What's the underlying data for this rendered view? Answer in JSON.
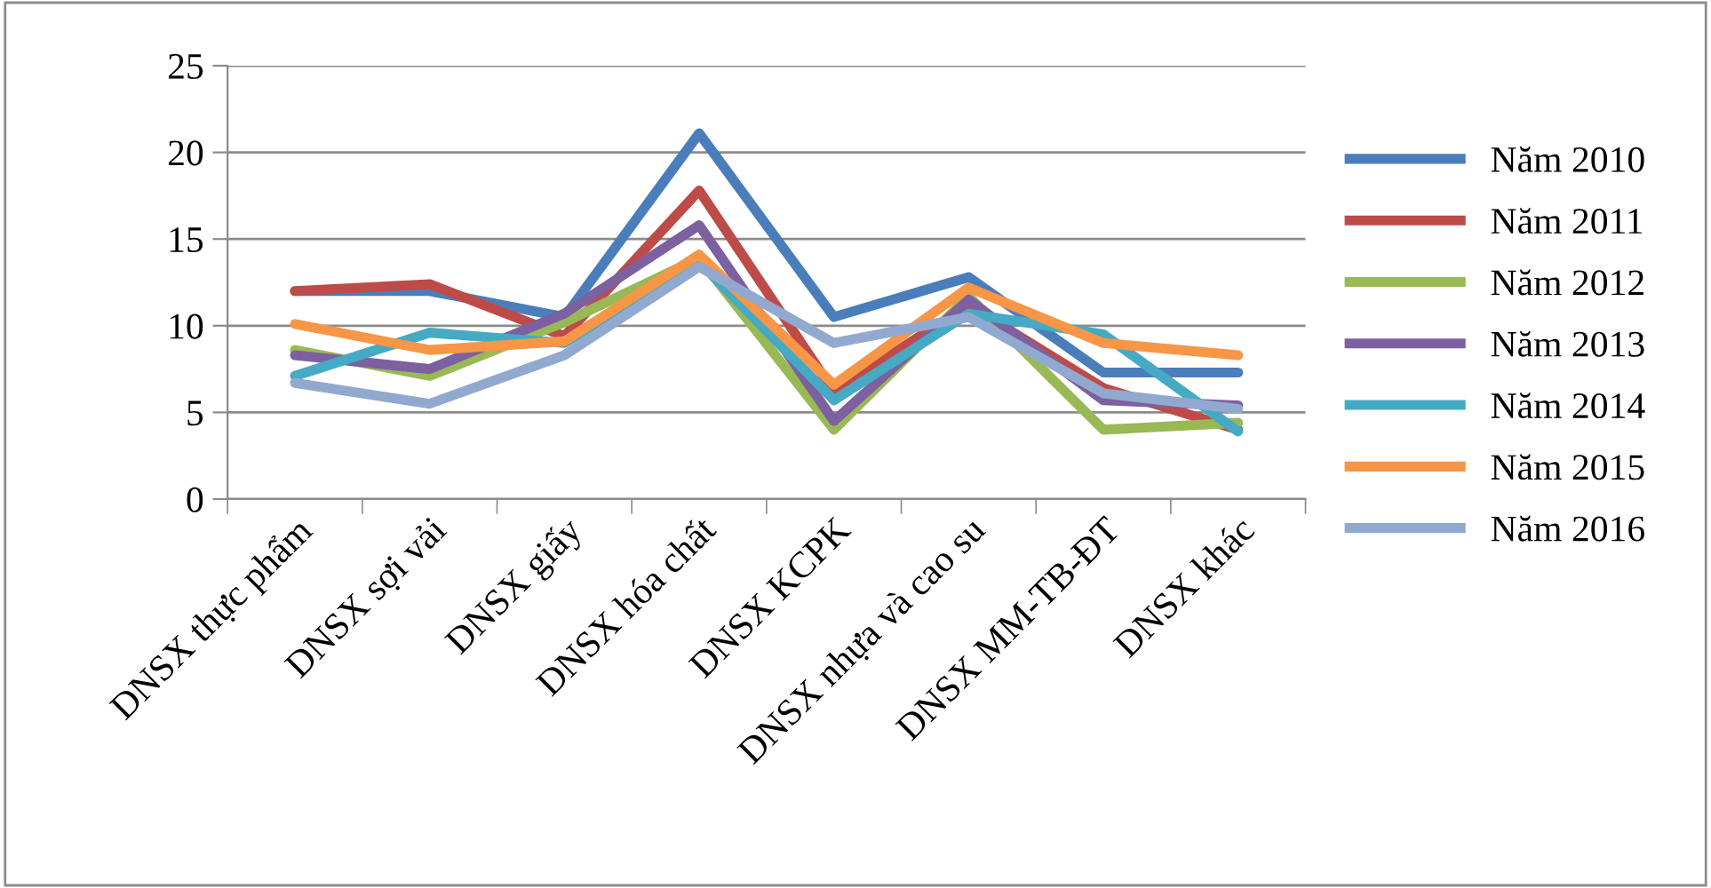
{
  "chart_data": {
    "type": "line",
    "categories": [
      "DNSX thực phẩm",
      "DNSX sợi vải",
      "DNSX giấy",
      "DNSX hóa chất",
      "DNSX KCPK",
      "DNSX nhựa và cao su",
      "DNSX MM-TB-ĐT",
      "DNSX khác"
    ],
    "series": [
      {
        "name": "Năm 2010",
        "color": "#4a7ebb",
        "values": [
          12.0,
          12.0,
          10.5,
          21.1,
          10.5,
          12.8,
          7.3,
          7.3
        ]
      },
      {
        "name": "Năm 2011",
        "color": "#be4b48",
        "values": [
          12.0,
          12.4,
          9.4,
          17.8,
          6.2,
          11.2,
          6.4,
          4.0
        ]
      },
      {
        "name": "Năm 2012",
        "color": "#98b954",
        "values": [
          8.6,
          7.1,
          10.2,
          13.9,
          4.0,
          11.7,
          4.0,
          4.4
        ]
      },
      {
        "name": "Năm 2013",
        "color": "#7d60a0",
        "values": [
          8.3,
          7.5,
          10.7,
          15.8,
          4.5,
          11.5,
          5.7,
          5.4
        ]
      },
      {
        "name": "Năm 2014",
        "color": "#46aac5",
        "values": [
          7.1,
          9.6,
          9.0,
          13.7,
          5.7,
          10.7,
          9.5,
          3.9
        ]
      },
      {
        "name": "Năm 2015",
        "color": "#f79646",
        "values": [
          10.1,
          8.6,
          9.1,
          14.1,
          6.6,
          12.2,
          9.0,
          8.3
        ]
      },
      {
        "name": "Năm 2016",
        "color": "#92a9cf",
        "values": [
          6.7,
          5.5,
          8.3,
          13.4,
          9.0,
          10.5,
          6.1,
          5.2
        ]
      }
    ],
    "ylim": [
      0,
      25
    ],
    "yticks": [
      0,
      5,
      10,
      15,
      20,
      25
    ],
    "grid": "y",
    "legend": "right",
    "marker": "none",
    "line_style": "solid"
  }
}
